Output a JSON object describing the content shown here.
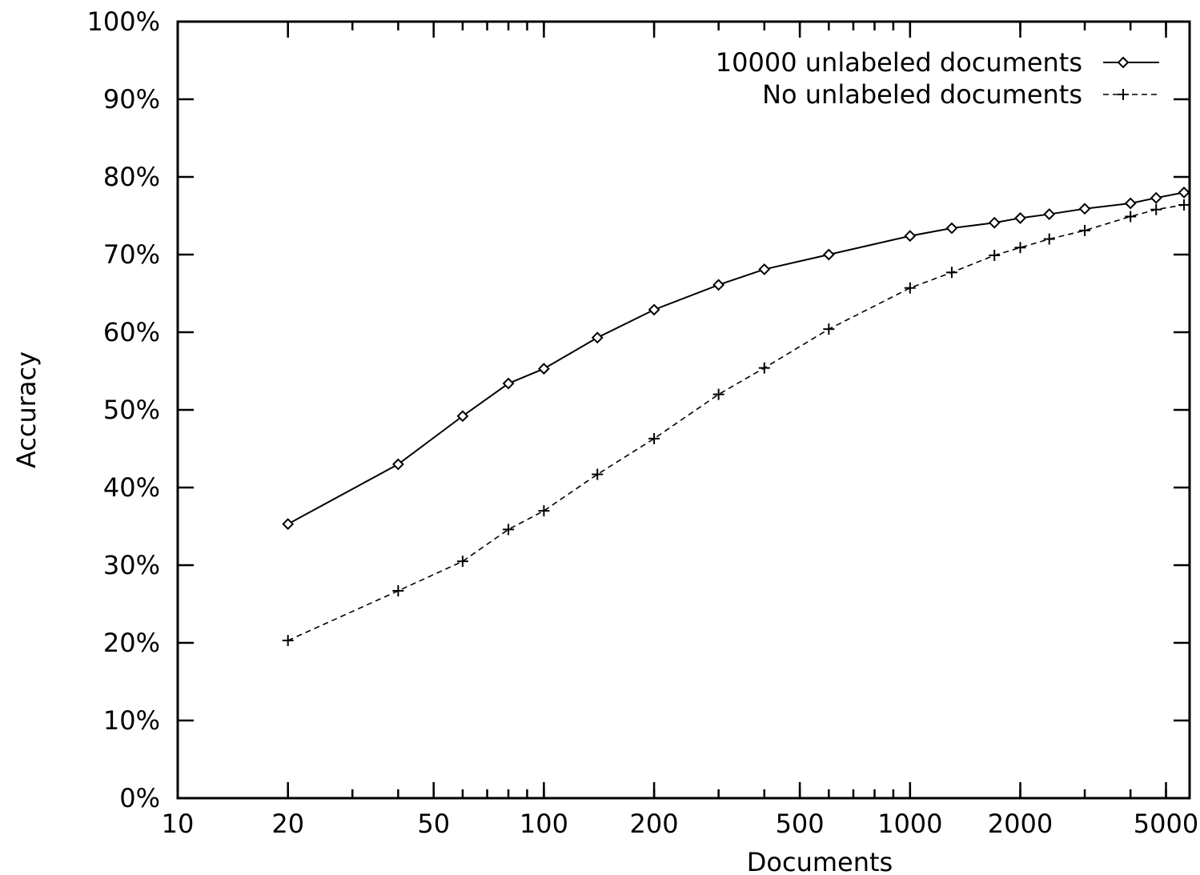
{
  "chart_data": {
    "type": "line",
    "title": "",
    "xlabel": "Documents",
    "ylabel": "Accuracy",
    "x_scale": "log",
    "xlim": [
      10,
      5800
    ],
    "ylim": [
      0,
      100
    ],
    "x_ticks": [
      {
        "value": 10,
        "label": "10"
      },
      {
        "value": 20,
        "label": "20"
      },
      {
        "value": 50,
        "label": "50"
      },
      {
        "value": 100,
        "label": "100"
      },
      {
        "value": 200,
        "label": "200"
      },
      {
        "value": 500,
        "label": "500"
      },
      {
        "value": 1000,
        "label": "1000"
      },
      {
        "value": 2000,
        "label": "2000"
      },
      {
        "value": 5000,
        "label": "5000"
      }
    ],
    "y_ticks": [
      {
        "value": 0,
        "label": "0%"
      },
      {
        "value": 10,
        "label": "10%"
      },
      {
        "value": 20,
        "label": "20%"
      },
      {
        "value": 30,
        "label": "30%"
      },
      {
        "value": 40,
        "label": "40%"
      },
      {
        "value": 50,
        "label": "50%"
      },
      {
        "value": 60,
        "label": "60%"
      },
      {
        "value": 70,
        "label": "70%"
      },
      {
        "value": 80,
        "label": "80%"
      },
      {
        "value": 90,
        "label": "90%"
      },
      {
        "value": 100,
        "label": "100%"
      }
    ],
    "grid": false,
    "legend_position": "top-right",
    "series": [
      {
        "name": "10000 unlabeled documents",
        "style": "solid",
        "marker": "diamond",
        "x": [
          20,
          40,
          60,
          80,
          100,
          140,
          200,
          300,
          400,
          600,
          1000,
          1300,
          1700,
          2000,
          2400,
          3000,
          4000,
          4700,
          5600
        ],
        "y": [
          35.3,
          43.0,
          49.2,
          53.4,
          55.3,
          59.3,
          62.9,
          66.1,
          68.1,
          70.0,
          72.4,
          73.4,
          74.1,
          74.7,
          75.2,
          75.9,
          76.6,
          77.3,
          78.0
        ]
      },
      {
        "name": "No unlabeled documents",
        "style": "dashed",
        "marker": "plus",
        "x": [
          20,
          40,
          60,
          80,
          100,
          140,
          200,
          300,
          400,
          600,
          1000,
          1300,
          1700,
          2000,
          2400,
          3000,
          4000,
          4700,
          5600
        ],
        "y": [
          20.3,
          26.7,
          30.5,
          34.6,
          37.0,
          41.7,
          46.3,
          52.0,
          55.4,
          60.4,
          65.7,
          67.7,
          69.9,
          70.9,
          72.0,
          73.1,
          74.9,
          75.8,
          76.4
        ]
      }
    ]
  }
}
